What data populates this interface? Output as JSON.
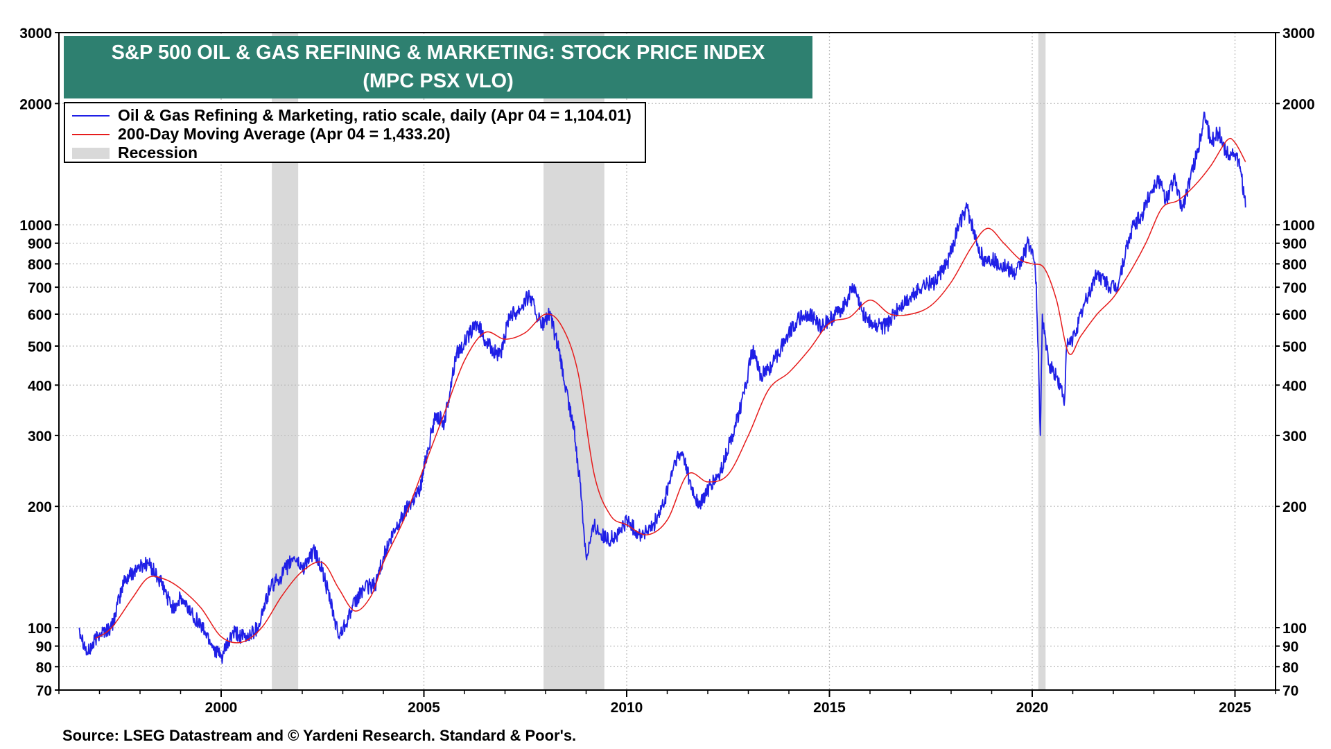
{
  "title": {
    "line1": "S&P 500 OIL & GAS REFINING & MARKETING: STOCK PRICE INDEX",
    "line2": "(MPC PSX VLO)"
  },
  "legend": {
    "items": [
      {
        "label": "Oil & Gas Refining & Marketing, ratio scale, daily (Apr 04 = 1,104.01)",
        "color": "#1f1fe6",
        "kind": "line"
      },
      {
        "label": "200-Day Moving Average (Apr 04 = 1,433.20)",
        "color": "#e61c1c",
        "kind": "line"
      },
      {
        "label": "Recession",
        "color": "#d9d9d9",
        "kind": "rect"
      }
    ]
  },
  "source": "Source: LSEG Datastream and © Yardeni Research. Standard & Poor's.",
  "chart_data": {
    "type": "line",
    "scale": "log",
    "xlim": [
      1996.0,
      2026.0
    ],
    "ylim": [
      70,
      3000
    ],
    "yticks": [
      70,
      80,
      90,
      100,
      200,
      300,
      400,
      500,
      600,
      700,
      800,
      900,
      1000,
      2000,
      3000
    ],
    "ytick_labels": [
      "70",
      "80",
      "90",
      "100",
      "200",
      "300",
      "400",
      "500",
      "600",
      "700",
      "800",
      "900",
      "1000",
      "2000",
      "3000"
    ],
    "xticks": [
      2000,
      2005,
      2010,
      2015,
      2020,
      2025
    ],
    "xtick_labels": [
      "2000",
      "2005",
      "2010",
      "2015",
      "2020",
      "2025"
    ],
    "recessions": [
      [
        2001.25,
        2001.9
      ],
      [
        2007.95,
        2009.45
      ],
      [
        2020.15,
        2020.33
      ]
    ],
    "series": [
      {
        "name": "Oil & Gas Refining & Marketing",
        "color": "#1f1fe6",
        "x": [
          1996.5,
          1996.7,
          1997.0,
          1997.3,
          1997.6,
          1997.9,
          1998.2,
          1998.5,
          1998.8,
          1999.0,
          1999.3,
          1999.6,
          1999.8,
          2000.0,
          2000.3,
          2000.6,
          2000.9,
          2001.2,
          2001.5,
          2001.8,
          2002.0,
          2002.3,
          2002.5,
          2002.7,
          2002.9,
          2003.2,
          2003.5,
          2003.8,
          2004.0,
          2004.3,
          2004.6,
          2004.9,
          2005.1,
          2005.3,
          2005.5,
          2005.7,
          2005.8,
          2006.0,
          2006.3,
          2006.6,
          2006.9,
          2007.1,
          2007.3,
          2007.6,
          2007.9,
          2008.1,
          2008.3,
          2008.5,
          2008.7,
          2008.85,
          2009.0,
          2009.2,
          2009.5,
          2009.8,
          2010.0,
          2010.3,
          2010.6,
          2010.9,
          2011.2,
          2011.4,
          2011.6,
          2011.8,
          2012.0,
          2012.3,
          2012.6,
          2012.9,
          2013.1,
          2013.3,
          2013.6,
          2013.9,
          2014.2,
          2014.5,
          2014.8,
          2015.0,
          2015.3,
          2015.6,
          2015.8,
          2016.1,
          2016.4,
          2016.7,
          2017.0,
          2017.3,
          2017.6,
          2017.9,
          2018.2,
          2018.4,
          2018.6,
          2018.8,
          2019.0,
          2019.3,
          2019.6,
          2019.9,
          2020.0,
          2020.1,
          2020.2,
          2020.25,
          2020.4,
          2020.6,
          2020.8,
          2020.85,
          2021.0,
          2021.3,
          2021.6,
          2021.9,
          2022.1,
          2022.3,
          2022.5,
          2022.7,
          2022.9,
          2023.1,
          2023.3,
          2023.5,
          2023.7,
          2023.9,
          2024.1,
          2024.25,
          2024.4,
          2024.6,
          2024.8,
          2025.0,
          2025.15,
          2025.26
        ],
        "y": [
          100,
          86,
          97,
          100,
          130,
          140,
          145,
          130,
          112,
          118,
          108,
          98,
          90,
          84,
          97,
          94,
          100,
          125,
          135,
          150,
          140,
          155,
          138,
          115,
          95,
          110,
          125,
          128,
          150,
          175,
          200,
          220,
          280,
          340,
          320,
          420,
          480,
          510,
          570,
          500,
          470,
          600,
          610,
          670,
          560,
          600,
          500,
          390,
          310,
          230,
          150,
          180,
          165,
          170,
          185,
          170,
          175,
          200,
          260,
          270,
          220,
          200,
          220,
          240,
          300,
          380,
          490,
          420,
          450,
          520,
          580,
          600,
          560,
          580,
          620,
          700,
          610,
          560,
          560,
          620,
          660,
          710,
          720,
          800,
          1000,
          1100,
          920,
          820,
          820,
          790,
          750,
          900,
          870,
          720,
          300,
          600,
          450,
          420,
          370,
          500,
          520,
          640,
          760,
          700,
          700,
          850,
          1000,
          1050,
          1200,
          1300,
          1150,
          1300,
          1100,
          1300,
          1550,
          1900,
          1600,
          1700,
          1500,
          1500,
          1350,
          1104
        ]
      },
      {
        "name": "200-Day Moving Average",
        "color": "#e61c1c",
        "x": [
          1996.9,
          1997.3,
          1997.8,
          1998.2,
          1998.6,
          1999.0,
          1999.5,
          2000.0,
          2000.5,
          2001.0,
          2001.5,
          2002.0,
          2002.5,
          2002.9,
          2003.3,
          2003.7,
          2004.0,
          2004.5,
          2005.0,
          2005.5,
          2006.0,
          2006.5,
          2007.0,
          2007.5,
          2008.0,
          2008.4,
          2008.8,
          2009.2,
          2009.6,
          2010.0,
          2010.5,
          2011.0,
          2011.5,
          2012.0,
          2012.5,
          2013.0,
          2013.5,
          2014.0,
          2014.5,
          2015.0,
          2015.5,
          2016.0,
          2016.5,
          2017.0,
          2017.5,
          2018.0,
          2018.5,
          2018.9,
          2019.3,
          2019.7,
          2020.0,
          2020.3,
          2020.6,
          2020.9,
          2021.2,
          2021.6,
          2022.0,
          2022.4,
          2022.8,
          2023.2,
          2023.6,
          2024.0,
          2024.4,
          2024.8,
          2025.0,
          2025.26
        ],
        "y": [
          94,
          100,
          118,
          133,
          132,
          125,
          112,
          95,
          92,
          100,
          120,
          138,
          145,
          125,
          110,
          120,
          145,
          185,
          250,
          340,
          460,
          540,
          520,
          540,
          600,
          560,
          430,
          240,
          190,
          180,
          170,
          185,
          240,
          230,
          240,
          300,
          390,
          430,
          490,
          570,
          590,
          650,
          600,
          600,
          630,
          720,
          880,
          980,
          900,
          820,
          800,
          780,
          650,
          480,
          530,
          600,
          660,
          760,
          900,
          1100,
          1150,
          1250,
          1400,
          1620,
          1600,
          1433
        ]
      }
    ]
  }
}
